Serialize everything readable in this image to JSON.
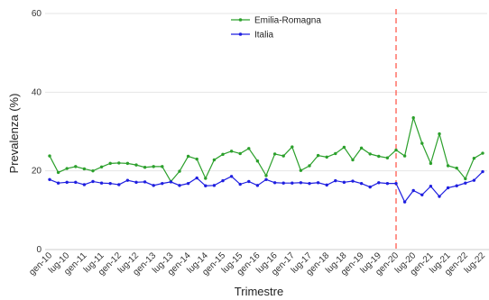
{
  "chart_data": {
    "type": "line",
    "xlabel": "Trimestre",
    "ylabel": "Prevalenza (%)",
    "ylim": [
      0,
      60
    ],
    "yticks": [
      0,
      20,
      40,
      60
    ],
    "grid": true,
    "legend_position": "top-center",
    "x": [
      "gen-10",
      "apr-10",
      "lug-10",
      "ott-10",
      "gen-11",
      "apr-11",
      "lug-11",
      "ott-11",
      "gen-12",
      "apr-12",
      "lug-12",
      "ott-12",
      "gen-13",
      "apr-13",
      "lug-13",
      "ott-13",
      "gen-14",
      "apr-14",
      "lug-14",
      "ott-14",
      "gen-15",
      "apr-15",
      "lug-15",
      "ott-15",
      "gen-16",
      "apr-16",
      "lug-16",
      "ott-16",
      "gen-17",
      "apr-17",
      "lug-17",
      "ott-17",
      "gen-18",
      "apr-18",
      "lug-18",
      "ott-18",
      "gen-19",
      "apr-19",
      "lug-19",
      "ott-19",
      "gen-20",
      "apr-20",
      "lug-20",
      "ott-20",
      "gen-21",
      "apr-21",
      "lug-21",
      "ott-21",
      "gen-22",
      "apr-22",
      "lug-22"
    ],
    "xtick_labels": [
      "gen-10",
      "lug-10",
      "gen-11",
      "lug-11",
      "gen-12",
      "lug-12",
      "gen-13",
      "lug-13",
      "gen-14",
      "lug-14",
      "gen-15",
      "lug-15",
      "gen-16",
      "lug-16",
      "gen-17",
      "lug-17",
      "gen-18",
      "lug-18",
      "gen-19",
      "lug-19",
      "gen-20",
      "lug-20",
      "gen-21",
      "lug-21",
      "gen-22",
      "lug-22"
    ],
    "vline_at": "gen-20",
    "series": [
      {
        "name": "Emilia-Romagna",
        "color": "#2ca02c",
        "values": [
          23.8,
          19.6,
          20.6,
          21.1,
          20.5,
          20.0,
          21.0,
          21.9,
          22.0,
          21.9,
          21.5,
          20.9,
          21.1,
          21.1,
          17.3,
          19.9,
          23.7,
          23.0,
          18.1,
          22.8,
          24.2,
          25.0,
          24.4,
          25.7,
          22.5,
          18.8,
          24.3,
          23.8,
          26.1,
          20.1,
          21.3,
          23.9,
          23.5,
          24.4,
          26.0,
          22.8,
          25.8,
          24.3,
          23.7,
          23.3,
          25.3,
          23.8,
          33.5,
          27.0,
          21.9,
          29.4,
          21.3,
          20.7,
          18.0,
          23.2,
          24.5
        ]
      },
      {
        "name": "Italia",
        "color": "#1f1fe0",
        "values": [
          17.8,
          16.9,
          17.1,
          17.1,
          16.5,
          17.3,
          16.9,
          16.8,
          16.5,
          17.6,
          17.1,
          17.2,
          16.3,
          16.8,
          17.2,
          16.3,
          16.8,
          18.2,
          16.2,
          16.3,
          17.5,
          18.6,
          16.6,
          17.3,
          16.3,
          17.8,
          17.0,
          16.9,
          16.9,
          17.0,
          16.8,
          17.0,
          16.4,
          17.5,
          17.1,
          17.4,
          16.8,
          15.9,
          17.0,
          16.8,
          16.8,
          12.1,
          15.0,
          13.9,
          16.1,
          13.5,
          15.7,
          16.2,
          16.9,
          17.6,
          19.8
        ]
      }
    ]
  }
}
